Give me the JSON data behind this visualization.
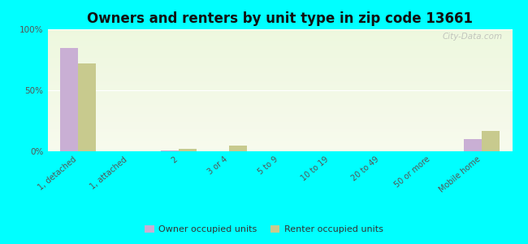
{
  "title": "Owners and renters by unit type in zip code 13661",
  "categories": [
    "1, detached",
    "1, attached",
    "2",
    "3 or 4",
    "5 to 9",
    "10 to 19",
    "20 to 49",
    "50 or more",
    "Mobile home"
  ],
  "owner_values": [
    85,
    0,
    1,
    0,
    0,
    0,
    0,
    0,
    10
  ],
  "renter_values": [
    72,
    0,
    2,
    5,
    0,
    0,
    0,
    0,
    17
  ],
  "owner_color": "#c9afd4",
  "renter_color": "#c8ca8e",
  "background_color": "#00ffff",
  "ylim": [
    0,
    100
  ],
  "yticks": [
    0,
    50,
    100
  ],
  "ytick_labels": [
    "0%",
    "50%",
    "100%"
  ],
  "bar_width": 0.35,
  "title_fontsize": 12,
  "legend_labels": [
    "Owner occupied units",
    "Renter occupied units"
  ],
  "watermark": "City-Data.com"
}
